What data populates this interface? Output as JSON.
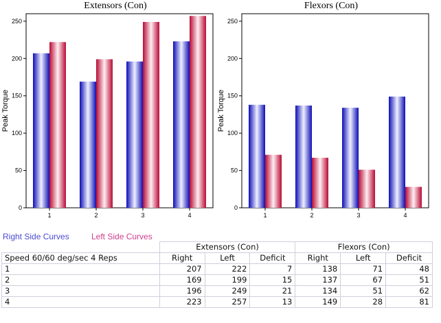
{
  "chart_data": [
    {
      "type": "bar",
      "title": "Extensors (Con)",
      "ylabel": "Peak Torque",
      "xlabel": "",
      "categories": [
        "1",
        "2",
        "3",
        "4"
      ],
      "ylim": [
        0,
        260
      ],
      "yticks": [
        0,
        50,
        100,
        150,
        200,
        250
      ],
      "series": [
        {
          "values": [
            207,
            169,
            196,
            223
          ],
          "color": "#1a1adf"
        },
        {
          "values": [
            222,
            199,
            249,
            257
          ],
          "color": "#d0103f"
        }
      ],
      "grid": false
    },
    {
      "type": "bar",
      "title": "Flexors (Con)",
      "ylabel": "Peak Torque",
      "xlabel": "",
      "categories": [
        "1",
        "2",
        "3",
        "4"
      ],
      "ylim": [
        0,
        260
      ],
      "yticks": [
        0,
        50,
        100,
        150,
        200,
        250
      ],
      "series": [
        {
          "values": [
            138,
            137,
            134,
            149
          ],
          "color": "#1a1adf"
        },
        {
          "values": [
            71,
            67,
            51,
            28
          ],
          "color": "#d0103f"
        }
      ],
      "grid": false
    }
  ],
  "legend": {
    "right": "Right Side Curves",
    "left": "Left Side Curves"
  },
  "table": {
    "group_headers": [
      "Extensors (Con)",
      "Flexors (Con)"
    ],
    "row_header": "Speed 60/60 deg/sec 4 Reps",
    "columns": [
      "Right",
      "Left",
      "Deficit",
      "Right",
      "Left",
      "Deficit"
    ],
    "rows": [
      {
        "label": "1",
        "values": [
          "207",
          "222",
          "7",
          "138",
          "71",
          "48"
        ]
      },
      {
        "label": "2",
        "values": [
          "169",
          "199",
          "15",
          "137",
          "67",
          "51"
        ]
      },
      {
        "label": "3",
        "values": [
          "196",
          "249",
          "21",
          "134",
          "51",
          "62"
        ]
      },
      {
        "label": "4",
        "values": [
          "223",
          "257",
          "13",
          "149",
          "28",
          "81"
        ]
      }
    ]
  }
}
